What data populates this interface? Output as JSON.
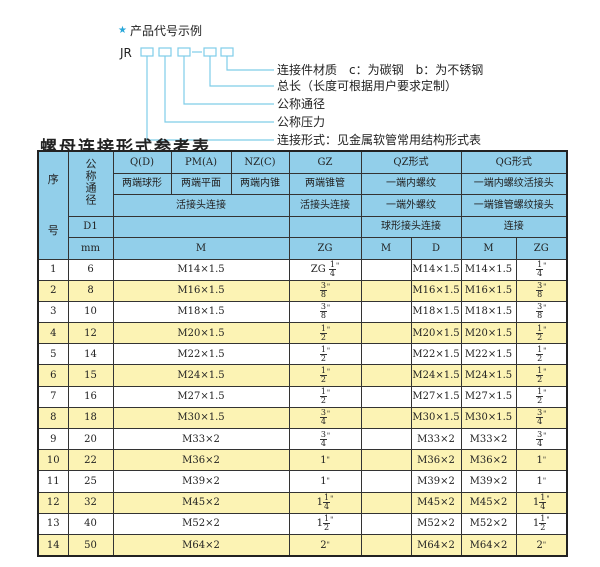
{
  "example": {
    "heading": "产品代号示例",
    "prefix": "JR",
    "separator": "-",
    "labels": [
      "连接件材质　c：为碳钢　b：为不锈钢",
      "总长（长度可根据用户要求定制）",
      "公称通径",
      "公称压力",
      "连接形式：见金属软管常用结构形式表"
    ],
    "accent": "#2aa7d9"
  },
  "title": "螺母连接形式参考表",
  "colors": {
    "header": "#92cfea",
    "row_alt": "#fcf3b4",
    "row": "#ffffff"
  },
  "header": {
    "seq": [
      "序",
      "号"
    ],
    "nominal": "公称通径",
    "d1": "D1",
    "mm": "mm",
    "row1": [
      "Q(D)",
      "PM(A)",
      "NZ(C)",
      "GZ",
      "QZ形式",
      "QG形式"
    ],
    "row2": [
      "两端球形",
      "两端平面",
      "两端内锥",
      "两端锥管",
      "一端内螺纹",
      "一端内螺纹活接头"
    ],
    "row3": [
      "活接头连接",
      "活接头连接",
      "一端外螺纹",
      "一端锥管螺纹接头"
    ],
    "row4": [
      "球形接头连接",
      "连接"
    ],
    "row5": [
      "M",
      "ZG",
      "M",
      "D",
      "M",
      "ZG"
    ]
  },
  "rows": [
    {
      "no": "1",
      "d": "6",
      "m": "M14×1.5",
      "zg": {
        "pre": "ZG",
        "w": "",
        "n": "1",
        "d": "4"
      },
      "qz_m": "",
      "qz_d": "M14×1.5",
      "qg_m": "M14×1.5",
      "qg_zg": {
        "pre": "",
        "w": "",
        "n": "1",
        "d": "4"
      }
    },
    {
      "no": "2",
      "d": "8",
      "m": "M16×1.5",
      "zg": {
        "pre": "",
        "w": "",
        "n": "3",
        "d": "8"
      },
      "qz_m": "",
      "qz_d": "M16×1.5",
      "qg_m": "M16×1.5",
      "qg_zg": {
        "pre": "",
        "w": "",
        "n": "3",
        "d": "8"
      }
    },
    {
      "no": "3",
      "d": "10",
      "m": "M18×1.5",
      "zg": {
        "pre": "",
        "w": "",
        "n": "3",
        "d": "8"
      },
      "qz_m": "",
      "qz_d": "M18×1.5",
      "qg_m": "M18×1.5",
      "qg_zg": {
        "pre": "",
        "w": "",
        "n": "3",
        "d": "8"
      }
    },
    {
      "no": "4",
      "d": "12",
      "m": "M20×1.5",
      "zg": {
        "pre": "",
        "w": "",
        "n": "1",
        "d": "2"
      },
      "qz_m": "",
      "qz_d": "M20×1.5",
      "qg_m": "M20×1.5",
      "qg_zg": {
        "pre": "",
        "w": "",
        "n": "1",
        "d": "2"
      }
    },
    {
      "no": "5",
      "d": "14",
      "m": "M22×1.5",
      "zg": {
        "pre": "",
        "w": "",
        "n": "1",
        "d": "2"
      },
      "qz_m": "",
      "qz_d": "M22×1.5",
      "qg_m": "M22×1.5",
      "qg_zg": {
        "pre": "",
        "w": "",
        "n": "1",
        "d": "2"
      }
    },
    {
      "no": "6",
      "d": "15",
      "m": "M24×1.5",
      "zg": {
        "pre": "",
        "w": "",
        "n": "1",
        "d": "2"
      },
      "qz_m": "",
      "qz_d": "M24×1.5",
      "qg_m": "M24×1.5",
      "qg_zg": {
        "pre": "",
        "w": "",
        "n": "1",
        "d": "2"
      }
    },
    {
      "no": "7",
      "d": "16",
      "m": "M27×1.5",
      "zg": {
        "pre": "",
        "w": "",
        "n": "1",
        "d": "2"
      },
      "qz_m": "",
      "qz_d": "M27×1.5",
      "qg_m": "M27×1.5",
      "qg_zg": {
        "pre": "",
        "w": "",
        "n": "1",
        "d": "2"
      }
    },
    {
      "no": "8",
      "d": "18",
      "m": "M30×1.5",
      "zg": {
        "pre": "",
        "w": "",
        "n": "3",
        "d": "4"
      },
      "qz_m": "",
      "qz_d": "M30×1.5",
      "qg_m": "M30×1.5",
      "qg_zg": {
        "pre": "",
        "w": "",
        "n": "3",
        "d": "4"
      }
    },
    {
      "no": "9",
      "d": "20",
      "m": "M33×2",
      "zg": {
        "pre": "",
        "w": "",
        "n": "3",
        "d": "4"
      },
      "qz_m": "",
      "qz_d": "M33×2",
      "qg_m": "M33×2",
      "qg_zg": {
        "pre": "",
        "w": "",
        "n": "3",
        "d": "4"
      }
    },
    {
      "no": "10",
      "d": "22",
      "m": "M36×2",
      "zg": {
        "pre": "",
        "w": "1",
        "n": "",
        "d": ""
      },
      "qz_m": "",
      "qz_d": "M36×2",
      "qg_m": "M36×2",
      "qg_zg": {
        "pre": "",
        "w": "1",
        "n": "",
        "d": ""
      }
    },
    {
      "no": "11",
      "d": "25",
      "m": "M39×2",
      "zg": {
        "pre": "",
        "w": "1",
        "n": "",
        "d": ""
      },
      "qz_m": "",
      "qz_d": "M39×2",
      "qg_m": "M39×2",
      "qg_zg": {
        "pre": "",
        "w": "1",
        "n": "",
        "d": ""
      }
    },
    {
      "no": "12",
      "d": "32",
      "m": "M45×2",
      "zg": {
        "pre": "",
        "w": "1",
        "n": "1",
        "d": "4"
      },
      "qz_m": "",
      "qz_d": "M45×2",
      "qg_m": "M45×2",
      "qg_zg": {
        "pre": "",
        "w": "1",
        "n": "1",
        "d": "4"
      }
    },
    {
      "no": "13",
      "d": "40",
      "m": "M52×2",
      "zg": {
        "pre": "",
        "w": "1",
        "n": "1",
        "d": "2"
      },
      "qz_m": "",
      "qz_d": "M52×2",
      "qg_m": "M52×2",
      "qg_zg": {
        "pre": "",
        "w": "1",
        "n": "1",
        "d": "2"
      }
    },
    {
      "no": "14",
      "d": "50",
      "m": "M64×2",
      "zg": {
        "pre": "",
        "w": "2",
        "n": "",
        "d": ""
      },
      "qz_m": "",
      "qz_d": "M64×2",
      "qg_m": "M64×2",
      "qg_zg": {
        "pre": "",
        "w": "2",
        "n": "",
        "d": ""
      }
    }
  ],
  "inch_mark": "\""
}
